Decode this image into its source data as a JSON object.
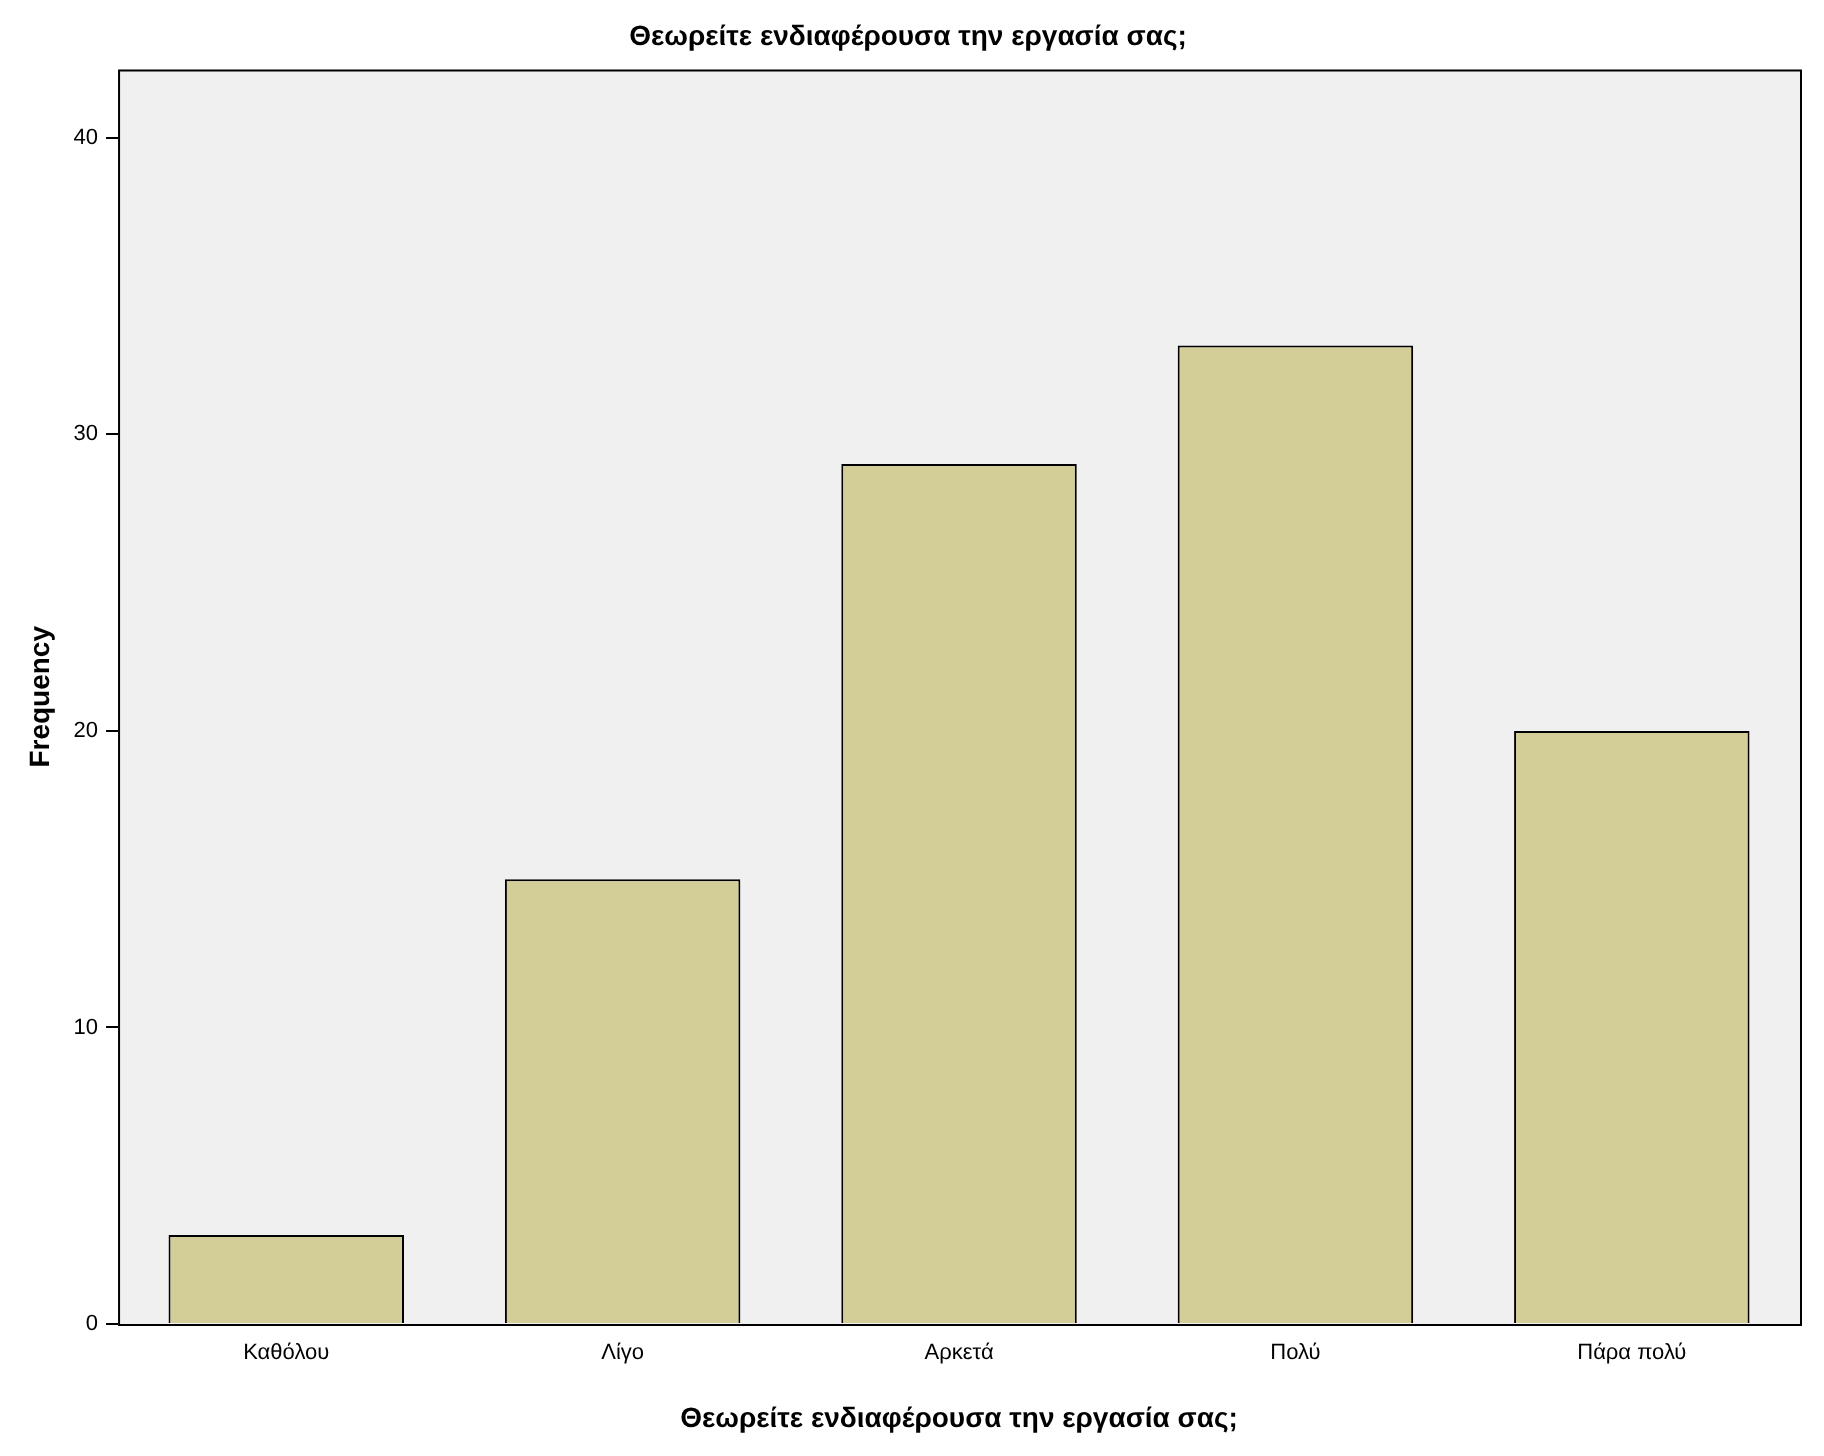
{
  "chart_data": {
    "type": "bar",
    "title": "Θεωρείτε ενδιαφέρουσα την εργασία σας;",
    "xlabel": "Θεωρείτε ενδιαφέρουσα την εργασία σας;",
    "ylabel": "Frequency",
    "categories": [
      "Καθόλου",
      "Λίγο",
      "Αρκετά",
      "Πολύ",
      "Πάρα πολύ"
    ],
    "values": [
      3,
      15,
      29,
      33,
      20
    ],
    "color": "#d3ce97",
    "ylim": [
      0,
      42.3
    ],
    "yticks": [
      0,
      10,
      20,
      30,
      40
    ],
    "grid": false,
    "legend": false
  }
}
